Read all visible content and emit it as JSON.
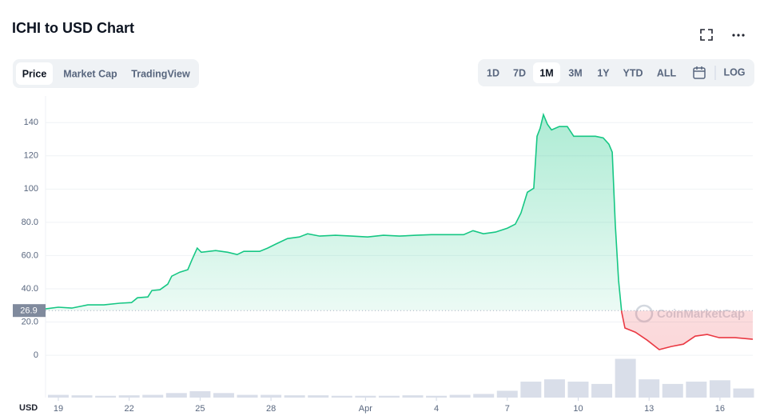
{
  "chart_data": {
    "type": "line",
    "title": "ICHI to USD Chart",
    "unit_label": "USD",
    "watermark": "CoinMarketCap",
    "grid": true,
    "ylim": [
      -12,
      156
    ],
    "yticks": [
      0,
      {
        "value": 20,
        "label": "20.0"
      },
      {
        "value": 40,
        "label": "40.0"
      },
      {
        "value": 60,
        "label": "60.0"
      },
      {
        "value": 80,
        "label": "80.0"
      },
      100,
      120,
      140
    ],
    "xlim": [
      18.46,
      48.39
    ],
    "xticks": [
      19,
      22,
      25,
      28,
      {
        "value": 32,
        "label": "Apr"
      },
      {
        "value": 35,
        "label": "4"
      },
      {
        "value": 38,
        "label": "7"
      },
      {
        "value": 41,
        "label": "10"
      },
      {
        "value": 44,
        "label": "13"
      },
      {
        "value": 47,
        "label": "16"
      }
    ],
    "reference_line": 26.9,
    "price": {
      "color_above": "#16c784",
      "color_below": "#ea3943",
      "x": [
        18.46,
        19,
        19.57,
        20.25,
        20.93,
        21.6,
        22.1,
        22.35,
        22.79,
        22.96,
        23.3,
        23.63,
        23.8,
        24.14,
        24.48,
        24.65,
        24.88,
        25.05,
        25.66,
        26.17,
        26.57,
        26.85,
        27.52,
        27.86,
        28.2,
        28.7,
        29.2,
        29.55,
        30.06,
        30.73,
        31.41,
        32.09,
        32.76,
        33.44,
        34.12,
        34.79,
        35.47,
        36.15,
        36.55,
        36.99,
        37.5,
        38.0,
        38.34,
        38.58,
        38.85,
        39.12,
        39.26,
        39.39,
        39.53,
        39.7,
        39.87,
        40.2,
        40.54,
        40.81,
        41.22,
        41.73,
        42.06,
        42.3,
        42.44,
        42.57,
        42.71,
        42.84,
        42.98,
        43.42,
        43.92,
        44.43,
        44.94,
        45.45,
        45.95,
        46.46,
        46.97,
        47.64,
        48.39
      ],
      "values": [
        27.9,
        28.9,
        28.4,
        30.3,
        30.3,
        31.3,
        31.7,
        34.6,
        35.1,
        39,
        39.4,
        42.8,
        47.6,
        50,
        51.5,
        57.2,
        64.5,
        62,
        63,
        62,
        60.6,
        62.5,
        62.5,
        64.5,
        66.9,
        70.2,
        71.2,
        73.1,
        71.7,
        72.2,
        71.7,
        71.2,
        72.2,
        71.7,
        72.2,
        72.6,
        72.6,
        72.6,
        75,
        73.1,
        74.1,
        76.5,
        78.9,
        85.6,
        98.1,
        100.5,
        131.8,
        136.6,
        144.8,
        139,
        135.6,
        137.6,
        137.6,
        131.8,
        131.8,
        131.8,
        130.8,
        127,
        122.2,
        78.9,
        45.2,
        26,
        16.4,
        13.9,
        9.1,
        3.4,
        5.3,
        6.7,
        11.5,
        12.5,
        10.6,
        10.6,
        9.6
      ]
    },
    "volume": {
      "color": "#cfd6e4",
      "ylim": [
        0,
        100
      ],
      "x": [
        19,
        20,
        21,
        22,
        23,
        24,
        25,
        26,
        27,
        28,
        29,
        30,
        31,
        32,
        33,
        34,
        35,
        36,
        37,
        38,
        39,
        40,
        41,
        42,
        43,
        44,
        45,
        46,
        47,
        48
      ],
      "values": [
        6,
        5,
        4,
        5,
        6,
        10,
        14,
        10,
        6,
        6,
        5,
        5,
        4,
        4,
        4,
        5,
        4,
        6,
        8,
        15,
        35,
        40,
        35,
        30,
        85,
        40,
        30,
        35,
        38,
        20
      ]
    }
  },
  "controls": {
    "tabs": [
      "Price",
      "Market Cap",
      "TradingView"
    ],
    "active_tab_index": 0,
    "ranges": [
      "1D",
      "7D",
      "1M",
      "3M",
      "1Y",
      "YTD",
      "ALL"
    ],
    "active_range_index": 2,
    "log_button": "LOG"
  }
}
